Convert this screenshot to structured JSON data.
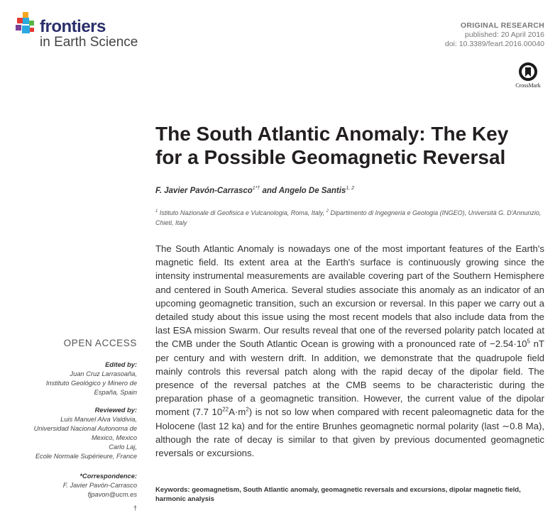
{
  "journal": {
    "name": "frontiers",
    "sub": "in Earth Science",
    "colors": [
      "#e63b35",
      "#f5a623",
      "#2aa9e0",
      "#7b3f98",
      "#58b547"
    ]
  },
  "meta": {
    "type": "ORIGINAL RESEARCH",
    "published": "published: 20 April 2016",
    "doi": "doi: 10.3389/feart.2016.00040"
  },
  "crossmark": {
    "label": "CrossMark"
  },
  "article": {
    "title_line1": "The South Atlantic Anomaly: The Key",
    "title_line2": "for a Possible Geomagnetic Reversal",
    "author1": "F. Javier Pavón-Carrasco",
    "author1_sup": "1*†",
    "author_and": " and ",
    "author2": "Angelo De Santis",
    "author2_sup": "1, 2",
    "affil_sup1": "1",
    "affil1": " Istituto Nazionale di Geofisica e Vulcanologia, Roma, Italy, ",
    "affil_sup2": "2",
    "affil2": " Dipartimento di Ingegneria e Geologia (INGEO), Università G. D'Annunzio, Chieti, Italy"
  },
  "abstract": {
    "p1": "The South Atlantic Anomaly is nowadays one of the most important features of the Earth's magnetic field. Its extent area at the Earth's surface is continuously growing since the intensity instrumental measurements are available covering part of the Southern Hemisphere and centered in South America. Several studies associate this anomaly as an indicator of an upcoming geomagnetic transition, such an excursion or reversal. In this paper we carry out a detailed study about this issue using the most recent models that also include data from the last ESA mission Swarm. Our results reveal that one of the reversed polarity patch located at the CMB under the South Atlantic Ocean is growing with a pronounced rate of −2.54·10",
    "sup1": "5",
    "p2": " nT per century and with western drift. In addition, we demonstrate that the quadrupole field mainly controls this reversal patch along with the rapid decay of the dipolar field. The presence of the reversal patches at the CMB seems to be characteristic during the preparation phase of a geomagnetic transition. However, the current value of the dipolar moment (7.7 10",
    "sup2": "22",
    "p3": "A·m",
    "sup3": "2",
    "p4": ") is not so low when compared with recent paleomagnetic data for the Holocene (last 12 ka) and for the entire Brunhes geomagnetic normal polarity (last ∼0.8 Ma), although the rate of decay is similar to that given by previous documented geomagnetic reversals or excursions."
  },
  "keywords": "Keywords: geomagnetism, South Atlantic anomaly, geomagnetic reversals and excursions, dipolar magnetic field, harmonic analysis",
  "sidebar": {
    "open_access": "OPEN ACCESS",
    "edited_by": "Edited by:",
    "editor": [
      "Juan Cruz Larrasoaña,",
      "Instituto Geológico y Minero de",
      "España, Spain"
    ],
    "reviewed_by": "Reviewed by:",
    "reviewers": [
      "Luis Manuel Alva Valdivia,",
      "Universidad Nacional Autonoma de",
      "Mexico, Mexico",
      "Carlo Laj,",
      "Ecole Normale Supérieure, France"
    ],
    "correspondence": "*Correspondence:",
    "corr_name": "F. Javier Pavón-Carrasco",
    "corr_email": "fjpavon@ucm.es",
    "dagger": "†"
  }
}
